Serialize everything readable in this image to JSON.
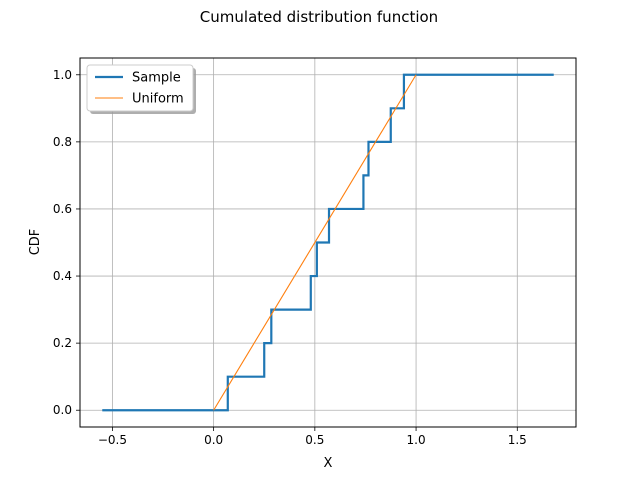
{
  "chart_data": {
    "type": "line",
    "title": "Cumulated distribution function",
    "xlabel": "X",
    "ylabel": "CDF",
    "xlim": [
      -0.66,
      1.79
    ],
    "ylim": [
      -0.05,
      1.05
    ],
    "xticks": [
      -0.5,
      0.0,
      0.5,
      1.0,
      1.5
    ],
    "xtick_labels": [
      "−0.5",
      "0.0",
      "0.5",
      "1.0",
      "1.5"
    ],
    "yticks": [
      0.0,
      0.2,
      0.4,
      0.6,
      0.8,
      1.0
    ],
    "ytick_labels": [
      "0.0",
      "0.2",
      "0.4",
      "0.6",
      "0.8",
      "1.0"
    ],
    "grid": true,
    "legend_placement": "top-left",
    "series": [
      {
        "name": "Sample",
        "style": "step",
        "color": "#1f77b4",
        "x": [
          -0.55,
          0.07,
          0.07,
          0.25,
          0.25,
          0.285,
          0.285,
          0.48,
          0.48,
          0.51,
          0.51,
          0.57,
          0.57,
          0.74,
          0.74,
          0.765,
          0.765,
          0.875,
          0.875,
          0.94,
          0.94,
          1.68
        ],
        "y": [
          0.0,
          0.0,
          0.1,
          0.1,
          0.2,
          0.2,
          0.3,
          0.3,
          0.4,
          0.4,
          0.5,
          0.5,
          0.6,
          0.6,
          0.7,
          0.7,
          0.8,
          0.8,
          0.9,
          0.9,
          1.0,
          1.0
        ]
      },
      {
        "name": "Uniform",
        "style": "line",
        "color": "#ff7f0e",
        "x": [
          0.0,
          1.0
        ],
        "y": [
          0.0,
          1.0
        ]
      }
    ]
  }
}
